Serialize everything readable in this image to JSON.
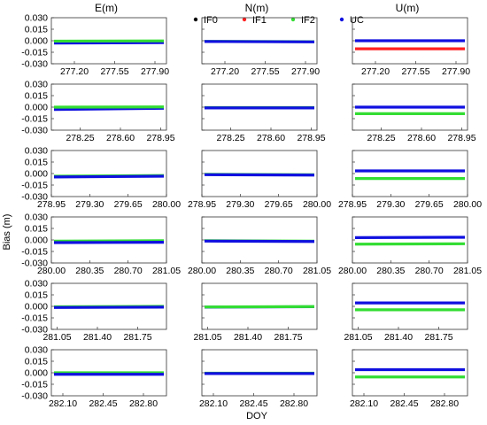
{
  "figure": {
    "column_titles": [
      "E(m)",
      "N(m)",
      "U(m)"
    ],
    "ylabel": "Bias (m)",
    "xlabel": "DOY"
  },
  "legend": [
    {
      "name": "IF0",
      "color": "#000000"
    },
    {
      "name": "IF1",
      "color": "#ff2020"
    },
    {
      "name": "IF2",
      "color": "#33dd33"
    },
    {
      "name": "UC",
      "color": "#1010e0"
    }
  ],
  "chart_data": {
    "type": "scatter",
    "title": "",
    "xlabel": "DOY",
    "ylabel": "Bias (m)",
    "column_titles": [
      "E(m)",
      "N(m)",
      "U(m)"
    ],
    "series_names": [
      "IF0",
      "IF1",
      "IF2",
      "UC"
    ],
    "ylim": [
      -0.03,
      0.03
    ],
    "yticks": [
      0.03,
      0.015,
      0.0,
      -0.015,
      -0.03
    ],
    "ytick_labels": [
      "0.030",
      "0.015",
      "0.000",
      "-0.015",
      "-0.030"
    ],
    "grid": false,
    "legend_position": "top-center",
    "rows": [
      {
        "xlim": [
          277.0,
          278.0
        ],
        "xticks": [
          277.2,
          277.55,
          277.9
        ],
        "xtick_labels": [
          "277.20",
          "277.55",
          "277.90"
        ],
        "panels": [
          {
            "component": "E",
            "series": [
              {
                "name": "UC",
                "values": [
                  -0.003,
                  -0.0025
                ]
              },
              {
                "name": "IF2",
                "values": [
                  -0.0005,
                  -0.0002
                ]
              }
            ]
          },
          {
            "component": "N",
            "series": [
              {
                "name": "IF2",
                "values": [
                  -0.0008,
                  -0.0012
                ]
              },
              {
                "name": "UC",
                "values": [
                  -0.001,
                  -0.0015
                ]
              }
            ]
          },
          {
            "component": "U",
            "series": [
              {
                "name": "UC",
                "values": [
                  0.0,
                  0.0
                ]
              },
              {
                "name": "IF1",
                "values": [
                  -0.0105,
                  -0.0105
                ]
              }
            ]
          }
        ]
      },
      {
        "xlim": [
          278.0,
          279.0
        ],
        "xticks": [
          278.25,
          278.6,
          278.95
        ],
        "xtick_labels": [
          "278.25",
          "278.60",
          "278.95"
        ],
        "panels": [
          {
            "component": "E",
            "series": [
              {
                "name": "UC",
                "values": [
                  -0.003,
                  -0.0015
                ]
              },
              {
                "name": "IF2",
                "values": [
                  0.0,
                  0.0003
                ]
              }
            ]
          },
          {
            "component": "N",
            "series": [
              {
                "name": "IF2",
                "values": [
                  -0.0005,
                  -0.0005
                ]
              },
              {
                "name": "UC",
                "values": [
                  -0.001,
                  -0.001
                ]
              }
            ]
          },
          {
            "component": "U",
            "series": [
              {
                "name": "UC",
                "values": [
                  0.0,
                  0.0
                ]
              },
              {
                "name": "IF2",
                "values": [
                  -0.0085,
                  -0.0085
                ]
              }
            ]
          }
        ]
      },
      {
        "xlim": [
          278.95,
          280.0
        ],
        "xticks": [
          278.95,
          279.3,
          279.65,
          280.0
        ],
        "xtick_labels": [
          "278.95",
          "279.30",
          "279.65",
          "280.00"
        ],
        "panels": [
          {
            "component": "E",
            "series": [
              {
                "name": "IF2",
                "values": [
                  -0.0035,
                  -0.0025
                ]
              },
              {
                "name": "UC",
                "values": [
                  -0.0045,
                  -0.0035
                ]
              }
            ]
          },
          {
            "component": "N",
            "series": [
              {
                "name": "IF2",
                "values": [
                  -0.001,
                  -0.0015
                ]
              },
              {
                "name": "UC",
                "values": [
                  -0.0015,
                  -0.002
                ]
              }
            ]
          },
          {
            "component": "U",
            "series": [
              {
                "name": "UC",
                "values": [
                  0.0035,
                  0.0035
                ]
              },
              {
                "name": "IF2",
                "values": [
                  -0.0065,
                  -0.0065
                ]
              }
            ]
          }
        ]
      },
      {
        "xlim": [
          280.0,
          281.05
        ],
        "xticks": [
          280.0,
          280.35,
          280.7,
          281.05
        ],
        "xtick_labels": [
          "280.00",
          "280.35",
          "280.70",
          "281.05"
        ],
        "panels": [
          {
            "component": "E",
            "series": [
              {
                "name": "IF2",
                "values": [
                  -0.0015,
                  -0.001
                ]
              },
              {
                "name": "UC",
                "values": [
                  -0.0035,
                  -0.003
                ]
              }
            ]
          },
          {
            "component": "N",
            "series": [
              {
                "name": "IF2",
                "values": [
                  -0.001,
                  -0.0015
                ]
              },
              {
                "name": "UC",
                "values": [
                  -0.0015,
                  -0.002
                ]
              }
            ]
          },
          {
            "component": "U",
            "series": [
              {
                "name": "UC",
                "values": [
                  0.003,
                  0.0035
                ]
              },
              {
                "name": "IF2",
                "values": [
                  -0.0055,
                  -0.005
                ]
              }
            ]
          }
        ]
      },
      {
        "xlim": [
          281.0,
          282.0
        ],
        "xticks": [
          281.05,
          281.4,
          281.75
        ],
        "xtick_labels": [
          "281.05",
          "281.40",
          "281.75"
        ],
        "panels": [
          {
            "component": "E",
            "series": [
              {
                "name": "IF2",
                "values": [
                  -0.0005,
                  0.0
                ]
              },
              {
                "name": "UC",
                "values": [
                  -0.0015,
                  -0.001
                ]
              }
            ]
          },
          {
            "component": "N",
            "series": [
              {
                "name": "UC",
                "values": [
                  -0.001,
                  -0.0005
                ]
              },
              {
                "name": "IF2",
                "values": [
                  -0.0008,
                  -0.0003
                ]
              }
            ]
          },
          {
            "component": "U",
            "series": [
              {
                "name": "UC",
                "values": [
                  0.0045,
                  0.0045
                ]
              },
              {
                "name": "IF2",
                "values": [
                  -0.0045,
                  -0.0045
                ]
              }
            ]
          }
        ]
      },
      {
        "xlim": [
          282.0,
          283.0
        ],
        "xticks": [
          282.1,
          282.45,
          282.8
        ],
        "xtick_labels": [
          "282.10",
          "282.45",
          "282.80"
        ],
        "panels": [
          {
            "component": "E",
            "series": [
              {
                "name": "IF2",
                "values": [
                  0.0,
                  0.0
                ]
              },
              {
                "name": "UC",
                "values": [
                  -0.002,
                  -0.002
                ]
              }
            ]
          },
          {
            "component": "N",
            "series": [
              {
                "name": "IF2",
                "values": [
                  -0.0005,
                  -0.0005
                ]
              },
              {
                "name": "UC",
                "values": [
                  -0.001,
                  -0.001
                ]
              }
            ]
          },
          {
            "component": "U",
            "series": [
              {
                "name": "UC",
                "values": [
                  0.004,
                  0.004
                ]
              },
              {
                "name": "IF2",
                "values": [
                  -0.0055,
                  -0.0055
                ]
              }
            ]
          }
        ]
      }
    ]
  }
}
